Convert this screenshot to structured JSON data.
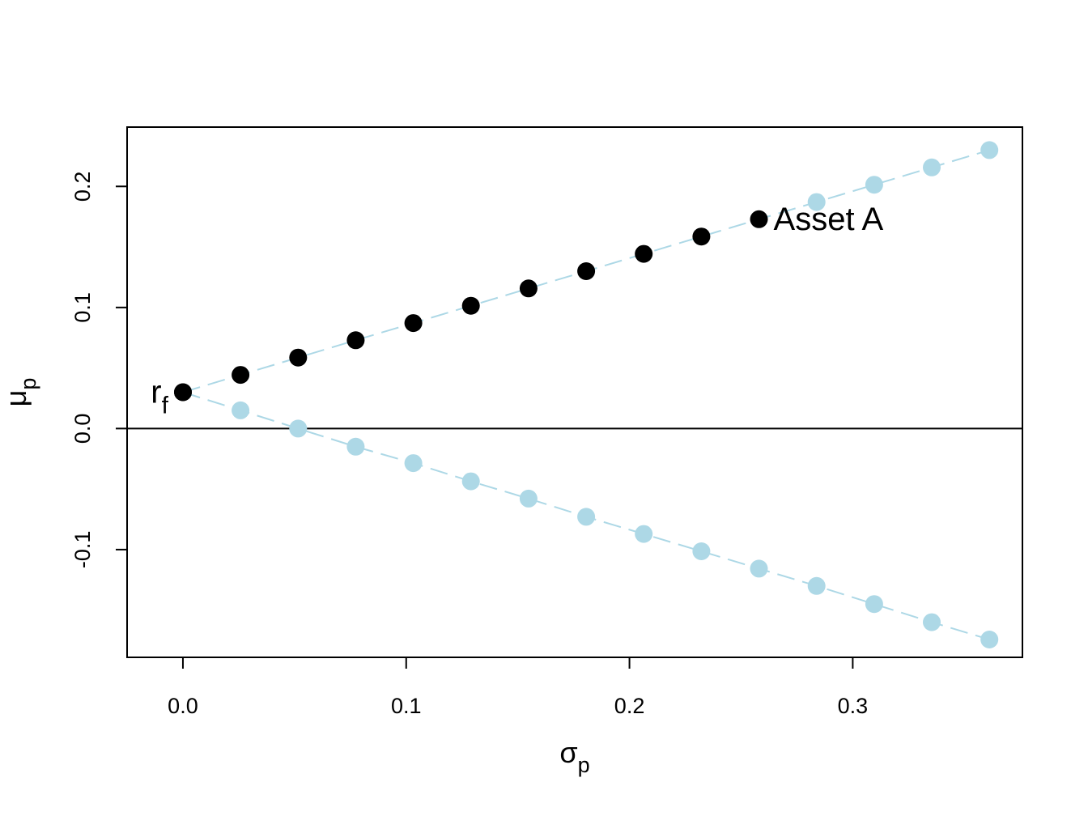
{
  "chart_data": {
    "type": "scatter",
    "title": "",
    "xlabel": "σ",
    "xlabel_sub": "p",
    "ylabel": "μ",
    "ylabel_sub": "p",
    "xlim": [
      -0.025,
      0.376
    ],
    "ylim": [
      -0.189,
      0.249
    ],
    "x_ticks": [
      0.0,
      0.1,
      0.2,
      0.3
    ],
    "x_tick_labels": [
      "0.0",
      "0.1",
      "0.2",
      "0.3"
    ],
    "y_ticks": [
      -0.1,
      0.0,
      0.1,
      0.2
    ],
    "y_tick_labels": [
      "-0.1",
      "0.0",
      "0.1",
      "0.2"
    ],
    "grid": false,
    "horizontal_line_y": 0,
    "series": [
      {
        "line_style": "dashed",
        "color": "#add8e6",
        "points": [
          [
            0.0,
            0.03
          ],
          [
            0.0258,
            0.0443
          ],
          [
            0.0516,
            0.0586
          ],
          [
            0.0774,
            0.0729
          ],
          [
            0.1032,
            0.0871
          ],
          [
            0.129,
            0.1014
          ],
          [
            0.1548,
            0.1157
          ],
          [
            0.1806,
            0.13
          ],
          [
            0.2064,
            0.1443
          ],
          [
            0.2322,
            0.1586
          ],
          [
            0.258,
            0.1729
          ],
          [
            0.2838,
            0.1871
          ],
          [
            0.3096,
            0.2014
          ],
          [
            0.3354,
            0.2157
          ],
          [
            0.3612,
            0.23
          ]
        ],
        "point_colors": [
          "#000000",
          "#000000",
          "#000000",
          "#000000",
          "#000000",
          "#000000",
          "#000000",
          "#000000",
          "#000000",
          "#000000",
          "#000000",
          "#add8e6",
          "#add8e6",
          "#add8e6",
          "#add8e6"
        ]
      },
      {
        "line_style": "dashed",
        "color": "#add8e6",
        "points": [
          [
            0.0,
            0.03
          ],
          [
            0.0258,
            0.015
          ],
          [
            0.0516,
            0.0
          ],
          [
            0.0774,
            -0.015
          ],
          [
            0.1032,
            -0.0286
          ],
          [
            0.129,
            -0.0436
          ],
          [
            0.1548,
            -0.0579
          ],
          [
            0.1806,
            -0.0729
          ],
          [
            0.2064,
            -0.0871
          ],
          [
            0.2322,
            -0.1014
          ],
          [
            0.258,
            -0.1157
          ],
          [
            0.2838,
            -0.13
          ],
          [
            0.3096,
            -0.145
          ],
          [
            0.3354,
            -0.16
          ],
          [
            0.3612,
            -0.1743
          ]
        ],
        "point_colors": [
          "#000000",
          "#add8e6",
          "#add8e6",
          "#add8e6",
          "#add8e6",
          "#add8e6",
          "#add8e6",
          "#add8e6",
          "#add8e6",
          "#add8e6",
          "#add8e6",
          "#add8e6",
          "#add8e6",
          "#add8e6",
          "#add8e6"
        ]
      }
    ],
    "annotations": [
      {
        "text": "r",
        "sub": "f",
        "x": 0.0,
        "y": 0.03,
        "anchor": "left"
      },
      {
        "text": "Asset A",
        "x": 0.258,
        "y": 0.1729,
        "anchor": "right"
      }
    ]
  }
}
